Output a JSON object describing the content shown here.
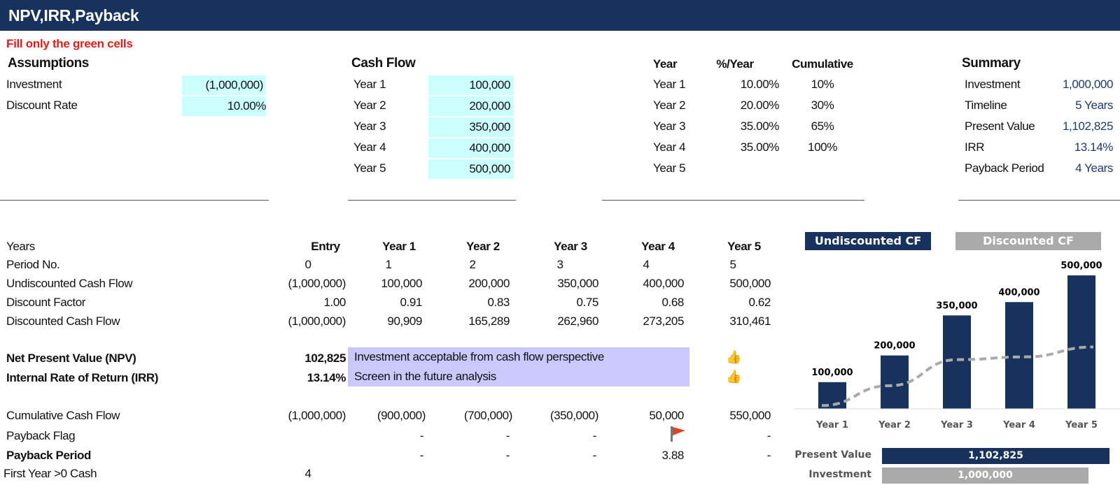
{
  "title": "NPV,IRR,Payback",
  "instruction": "Fill only the green cells",
  "assumptions": {
    "heading": "Assumptions",
    "rows": [
      {
        "label": "Investment",
        "value": "(1,000,000)"
      },
      {
        "label": "Discount Rate",
        "value": "10.00%"
      }
    ]
  },
  "cash_flow": {
    "heading": "Cash Flow",
    "rows": [
      {
        "label": "Year 1",
        "value": "100,000"
      },
      {
        "label": "Year 2",
        "value": "200,000"
      },
      {
        "label": "Year 3",
        "value": "350,000"
      },
      {
        "label": "Year 4",
        "value": "400,000"
      },
      {
        "label": "Year 5",
        "value": "500,000"
      }
    ]
  },
  "percent_table": {
    "headers": [
      "Year",
      "%/Year",
      "Cumulative"
    ],
    "rows": [
      {
        "year": "Year 1",
        "pct": "10.00%",
        "cum": "10%"
      },
      {
        "year": "Year 2",
        "pct": "20.00%",
        "cum": "30%"
      },
      {
        "year": "Year 3",
        "pct": "35.00%",
        "cum": "65%"
      },
      {
        "year": "Year 4",
        "pct": "35.00%",
        "cum": "100%"
      },
      {
        "year": "Year 5",
        "pct": "",
        "cum": ""
      }
    ]
  },
  "summary": {
    "heading": "Summary",
    "rows": [
      {
        "label": "Investment",
        "value": "1,000,000"
      },
      {
        "label": "Timeline",
        "value": "5 Years"
      },
      {
        "label": "Present Value",
        "value": "1,102,825"
      },
      {
        "label": "IRR",
        "value": "13.14%"
      },
      {
        "label": "Payback Period",
        "value": "4 Years"
      }
    ]
  },
  "main_table": {
    "columns": [
      "Entry",
      "Year 1",
      "Year 2",
      "Year 3",
      "Year 4",
      "Year 5"
    ],
    "header_label": "Years",
    "rows": [
      {
        "label": "Period No.",
        "cells": [
          "0",
          "1",
          "2",
          "3",
          "4",
          "5"
        ]
      },
      {
        "label": "Undiscounted Cash Flow",
        "cells": [
          "(1,000,000)",
          "100,000",
          "200,000",
          "350,000",
          "400,000",
          "500,000"
        ]
      },
      {
        "label": "Discount Factor",
        "cells": [
          "1.00",
          "0.91",
          "0.83",
          "0.75",
          "0.68",
          "0.62"
        ]
      },
      {
        "label": "Discounted Cash Flow",
        "cells": [
          "(1,000,000)",
          "90,909",
          "165,289",
          "262,960",
          "273,205",
          "310,461"
        ]
      }
    ],
    "npv": {
      "label": "Net Present Value (NPV)",
      "value": "102,825",
      "note": "Investment acceptable from cash flow perspective",
      "icon": "thumbs-up-icon"
    },
    "irr": {
      "label": "Internal Rate of Return (IRR)",
      "value": "13.14%",
      "note": "Screen in the future analysis",
      "icon": "thumbs-up-icon"
    },
    "cumulative": {
      "label": "Cumulative Cash Flow",
      "cells": [
        "(1,000,000)",
        "(900,000)",
        "(700,000)",
        "(350,000)",
        "50,000",
        "550,000"
      ]
    },
    "payback_flag": {
      "label": "Payback Flag",
      "cells": [
        "",
        "-",
        "-",
        "-",
        "",
        "-"
      ],
      "flag_icon": "red-flag-icon"
    },
    "payback_period": {
      "label": "Payback Period",
      "cells": [
        "",
        "-",
        "-",
        "-",
        "3.88",
        "-"
      ]
    },
    "first_year": {
      "label": "First Year >0 Cash",
      "value": "4"
    }
  },
  "chart_data": {
    "type": "bar",
    "legend": [
      "Undiscounted CF",
      "Discounted CF"
    ],
    "categories": [
      "Year 1",
      "Year 2",
      "Year 3",
      "Year 4",
      "Year 5"
    ],
    "series": [
      {
        "name": "Undiscounted CF",
        "values": [
          100000,
          200000,
          350000,
          400000,
          500000
        ],
        "labels": [
          "100,000",
          "200,000",
          "350,000",
          "400,000",
          "500,000"
        ],
        "color": "#17325c"
      },
      {
        "name": "Discounted CF",
        "values": [
          90909,
          165289,
          262960,
          273205,
          310461
        ],
        "color": "#aaaaaa",
        "style": "dashed-line"
      }
    ],
    "ylim": [
      0,
      550000
    ],
    "grid": false
  },
  "pv_bars": {
    "rows": [
      {
        "label": "Present Value",
        "value": 1102825,
        "text": "1,102,825",
        "color": "#17325c"
      },
      {
        "label": "Investment",
        "value": 1000000,
        "text": "1,000,000",
        "color": "#aaaaaa"
      }
    ]
  }
}
